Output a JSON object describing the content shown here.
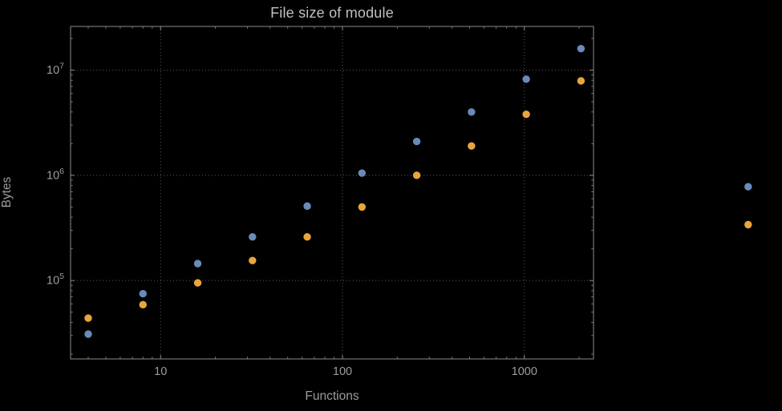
{
  "chart_data": {
    "type": "scatter",
    "title": "File size of module",
    "xlabel": "Functions",
    "ylabel": "Bytes",
    "xscale": "log",
    "yscale": "log",
    "xlim": [
      3.2,
      2400
    ],
    "ylim": [
      18000,
      26000000
    ],
    "grid": "dotted-major",
    "legend_position": "none",
    "x_ticks": [
      {
        "value": 10,
        "label": "10"
      },
      {
        "value": 100,
        "label": "100"
      },
      {
        "value": 1000,
        "label": "1000"
      }
    ],
    "y_ticks": [
      {
        "value": 100000,
        "base": "10",
        "exp": "5"
      },
      {
        "value": 1000000,
        "base": "10",
        "exp": "6"
      },
      {
        "value": 10000000,
        "base": "10",
        "exp": "7"
      }
    ],
    "series": [
      {
        "name": "series-1",
        "color": "#6a8ab8",
        "points": [
          [
            4,
            31000
          ],
          [
            8,
            75000
          ],
          [
            16,
            145000
          ],
          [
            32,
            260000
          ],
          [
            64,
            510000
          ],
          [
            128,
            1050000
          ],
          [
            256,
            2100000
          ],
          [
            512,
            4000000
          ],
          [
            1024,
            8200000
          ],
          [
            2048,
            16000000
          ],
          [
            17000,
            780000
          ]
        ]
      },
      {
        "name": "series-2",
        "color": "#e9a53b",
        "points": [
          [
            4,
            44000
          ],
          [
            8,
            59000
          ],
          [
            16,
            95000
          ],
          [
            32,
            155000
          ],
          [
            64,
            260000
          ],
          [
            128,
            500000
          ],
          [
            256,
            1000000
          ],
          [
            512,
            1900000
          ],
          [
            1024,
            3800000
          ],
          [
            2048,
            7900000
          ],
          [
            17000,
            340000
          ]
        ]
      }
    ]
  },
  "style": {
    "background": "#000000",
    "frame": "#8c8c8c",
    "grid": "#5a5a5a",
    "tick_text": "#9c9c9c",
    "title_text": "#c0c0c0",
    "axis_label_text": "#9c9c9c"
  }
}
